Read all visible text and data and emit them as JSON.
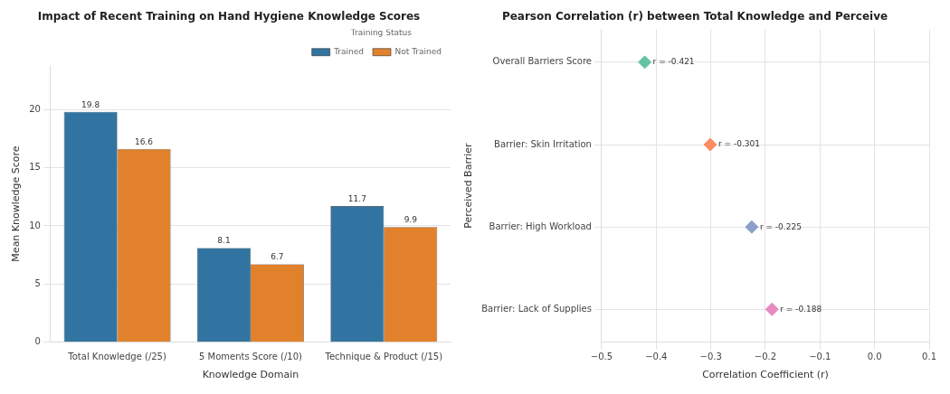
{
  "chart_data": [
    {
      "type": "bar",
      "title": "Impact of Recent Training on Hand Hygiene Knowledge Scores",
      "xlabel": "Knowledge Domain",
      "ylabel": "Mean Knowledge Score",
      "legend_title": "Training Status",
      "categories": [
        "Total Knowledge (/25)",
        "5 Moments Score (/10)",
        "Technique & Product (/15)"
      ],
      "series": [
        {
          "name": "Trained",
          "color": "#3274a1",
          "values": [
            19.8,
            8.1,
            11.7
          ]
        },
        {
          "name": "Not Trained",
          "color": "#e1812c",
          "values": [
            16.6,
            6.7,
            9.9
          ]
        }
      ],
      "ylim": [
        0,
        23.8
      ],
      "yticks": [
        0,
        5,
        10,
        15,
        20
      ],
      "grid": "y",
      "legend": "top right",
      "data_labels": true
    },
    {
      "type": "scatter",
      "orientation": "horizontal",
      "title": "Pearson Correlation (r) between Total Knowledge and Perceive",
      "xlabel": "Correlation Coefficient (r)",
      "ylabel": "Perceived Barrier",
      "categories": [
        "Overall Barriers Score",
        "Barrier: Skin Irritation",
        "Barrier: High Workload",
        "Barrier: Lack of Supplies"
      ],
      "values": [
        -0.421,
        -0.301,
        -0.225,
        -0.188
      ],
      "value_labels": [
        "r = -0.421",
        "r = -0.301",
        "r = -0.225",
        "r = -0.188"
      ],
      "colors": [
        "#66c2a5",
        "#fc8d62",
        "#8da0cb",
        "#e78ac3"
      ],
      "xlim": [
        -0.5,
        0.1
      ],
      "xticks": [
        {
          "value": -0.5,
          "label": "−0.5"
        },
        {
          "value": -0.4,
          "label": "−0.4"
        },
        {
          "value": -0.3,
          "label": "−0.3"
        },
        {
          "value": -0.2,
          "label": "−0.2"
        },
        {
          "value": -0.1,
          "label": "−0.1"
        },
        {
          "value": 0,
          "label": "0.0"
        },
        {
          "value": 0.1,
          "label": "0.1"
        }
      ],
      "grid": true,
      "marker": "diamond"
    }
  ]
}
